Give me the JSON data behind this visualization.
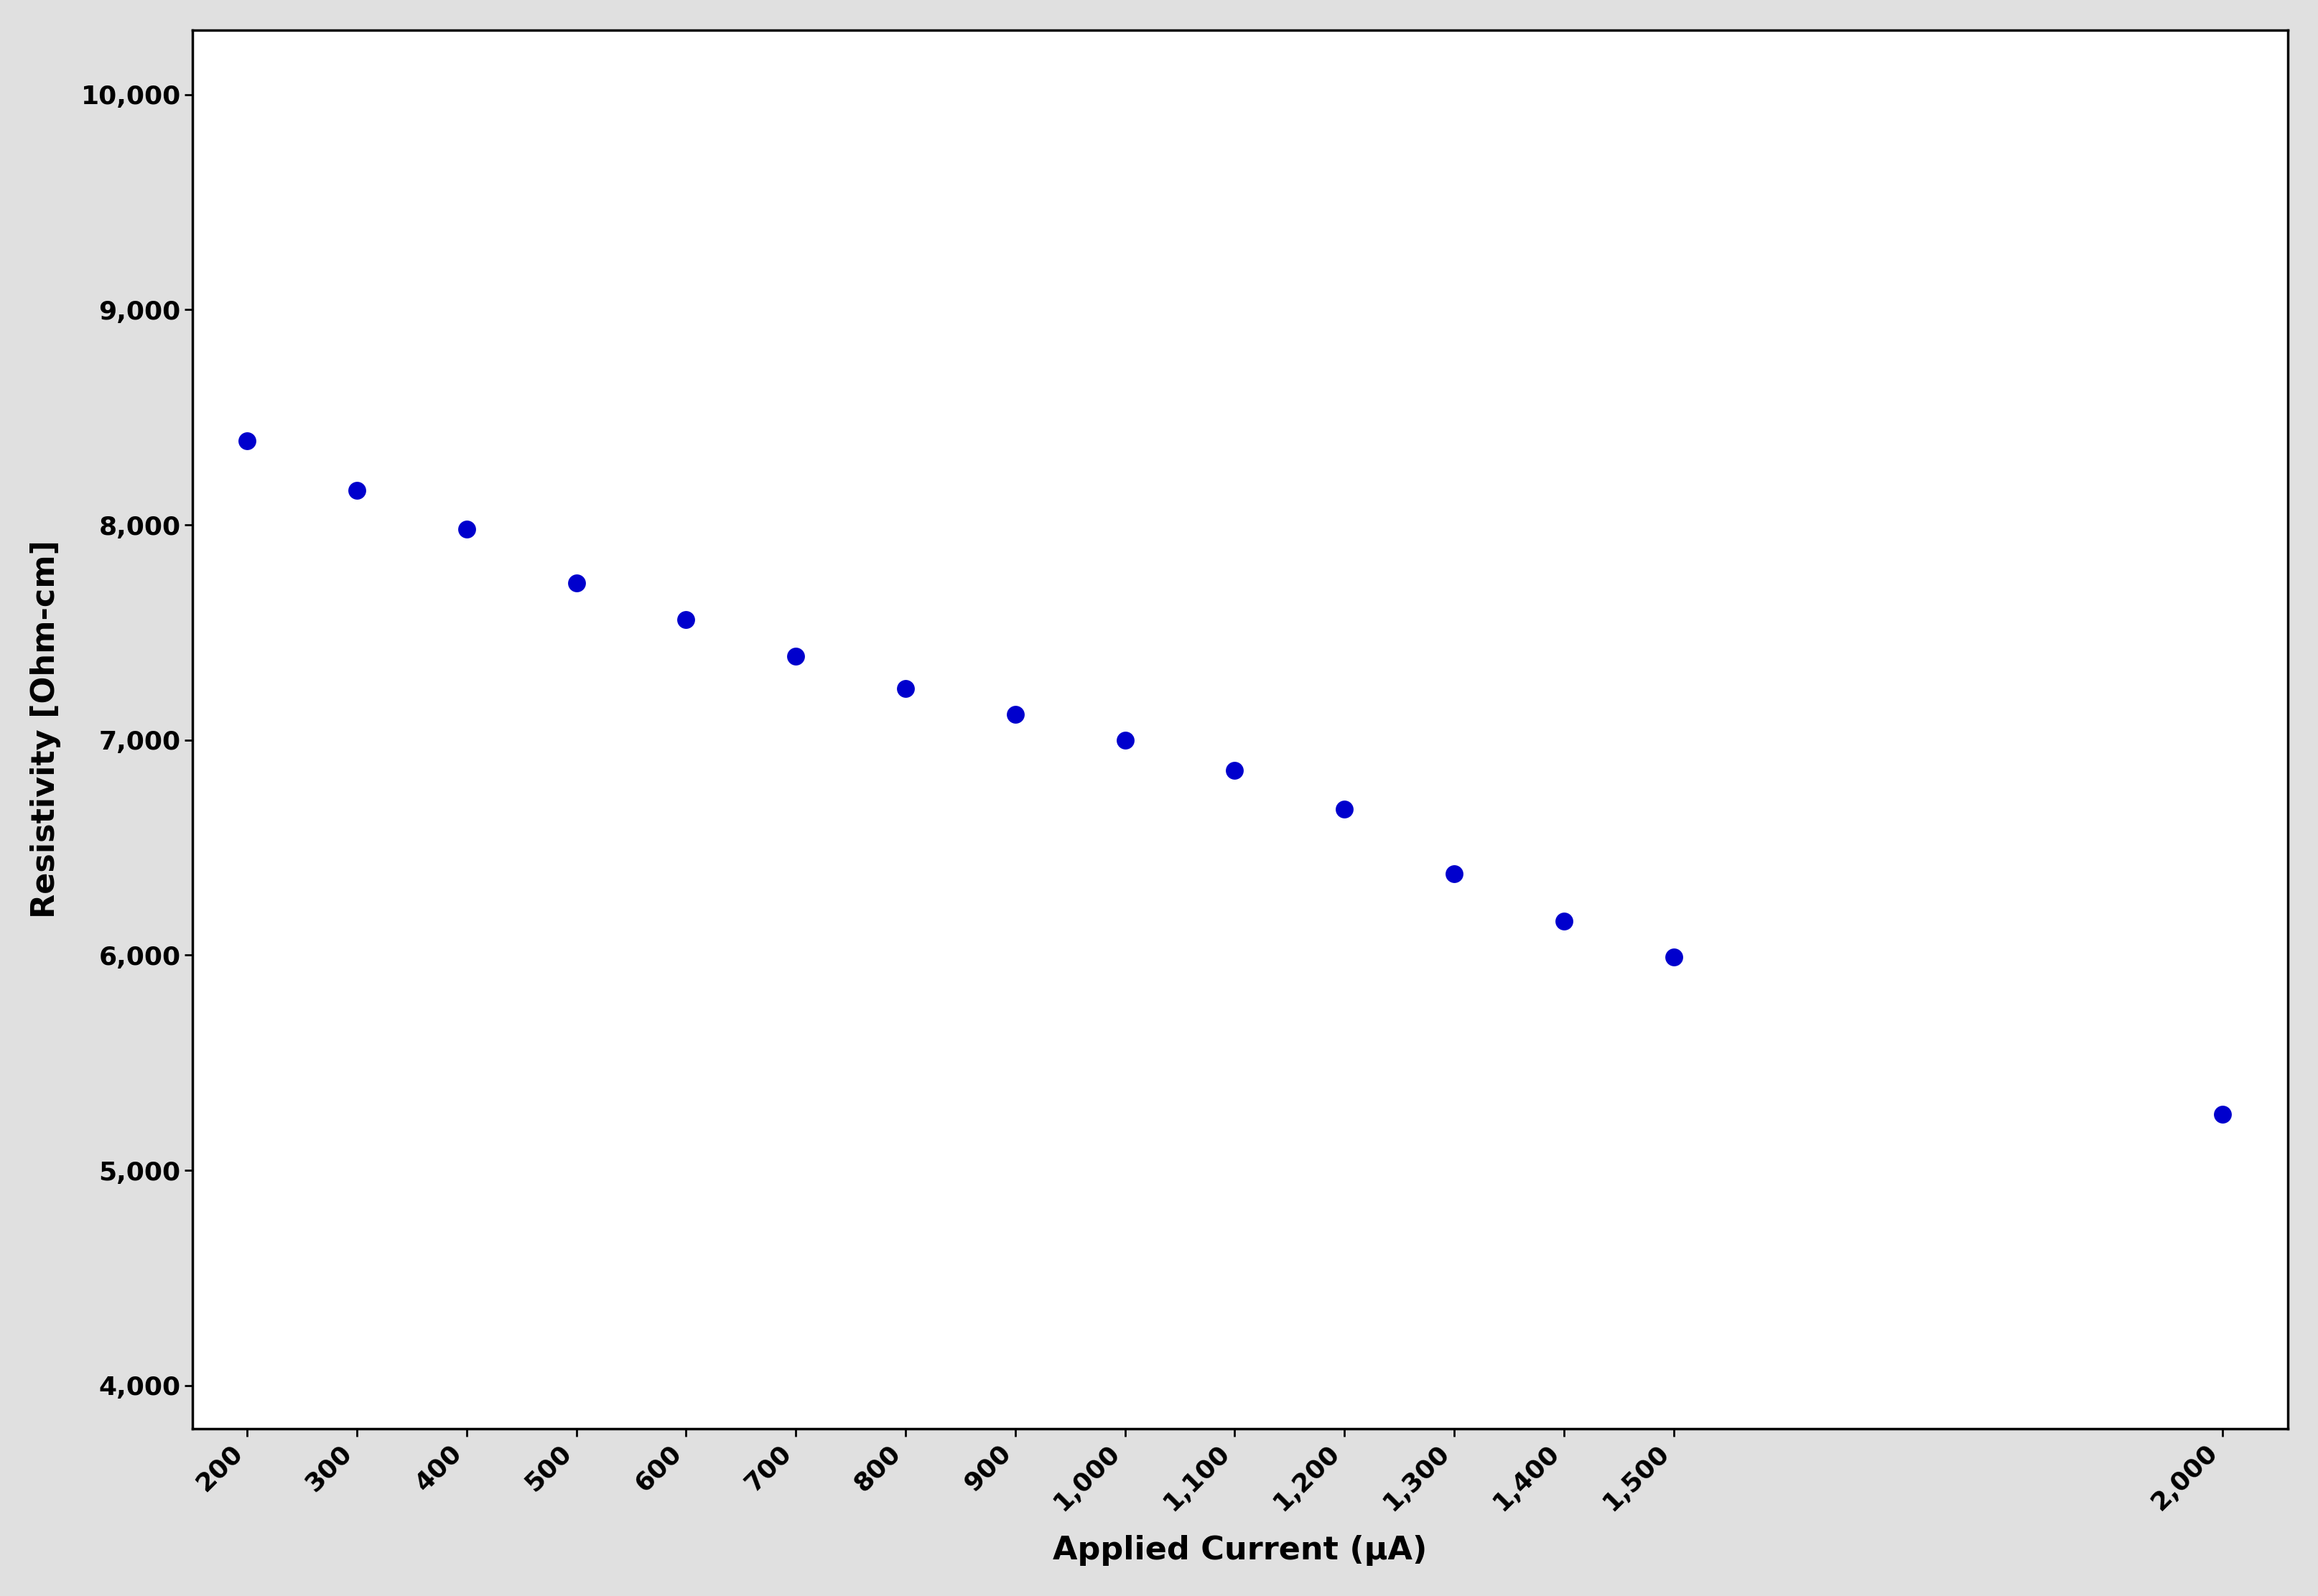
{
  "x_values": [
    200,
    300,
    400,
    500,
    600,
    700,
    800,
    900,
    1000,
    1100,
    1200,
    1300,
    1400,
    1500,
    2000
  ],
  "y_values": [
    8390,
    8160,
    7980,
    7730,
    7560,
    7390,
    7240,
    7120,
    7000,
    6860,
    6680,
    6380,
    6160,
    5990,
    5260
  ],
  "x_tick_labels": [
    "200",
    "300",
    "400",
    "500",
    "600",
    "700",
    "800",
    "900",
    "1,000",
    "1,100",
    "1,200",
    "1,300",
    "1,400",
    "1,500",
    "2,000"
  ],
  "x_tick_positions": [
    200,
    300,
    400,
    500,
    600,
    700,
    800,
    900,
    1000,
    1100,
    1200,
    1300,
    1400,
    1500,
    2000
  ],
  "y_tick_positions": [
    4000,
    5000,
    6000,
    7000,
    8000,
    9000,
    10000
  ],
  "y_tick_labels": [
    "4,000",
    "5,000",
    "6,000",
    "7,000",
    "8,000",
    "9,000",
    "10,000"
  ],
  "xlabel": "Applied Current (μA)",
  "ylabel": "Resistivity [Ohm-cm]",
  "xlim": [
    150,
    2060
  ],
  "ylim": [
    3800,
    10300
  ],
  "dot_color": "#0000CD",
  "dot_size": 320,
  "background_color": "#ffffff",
  "outer_background": "#e0e0e0",
  "border_color": "#000000",
  "xlabel_fontsize": 32,
  "ylabel_fontsize": 32,
  "tick_fontsize": 26,
  "tick_label_fontweight": "bold",
  "axis_label_fontweight": "bold"
}
